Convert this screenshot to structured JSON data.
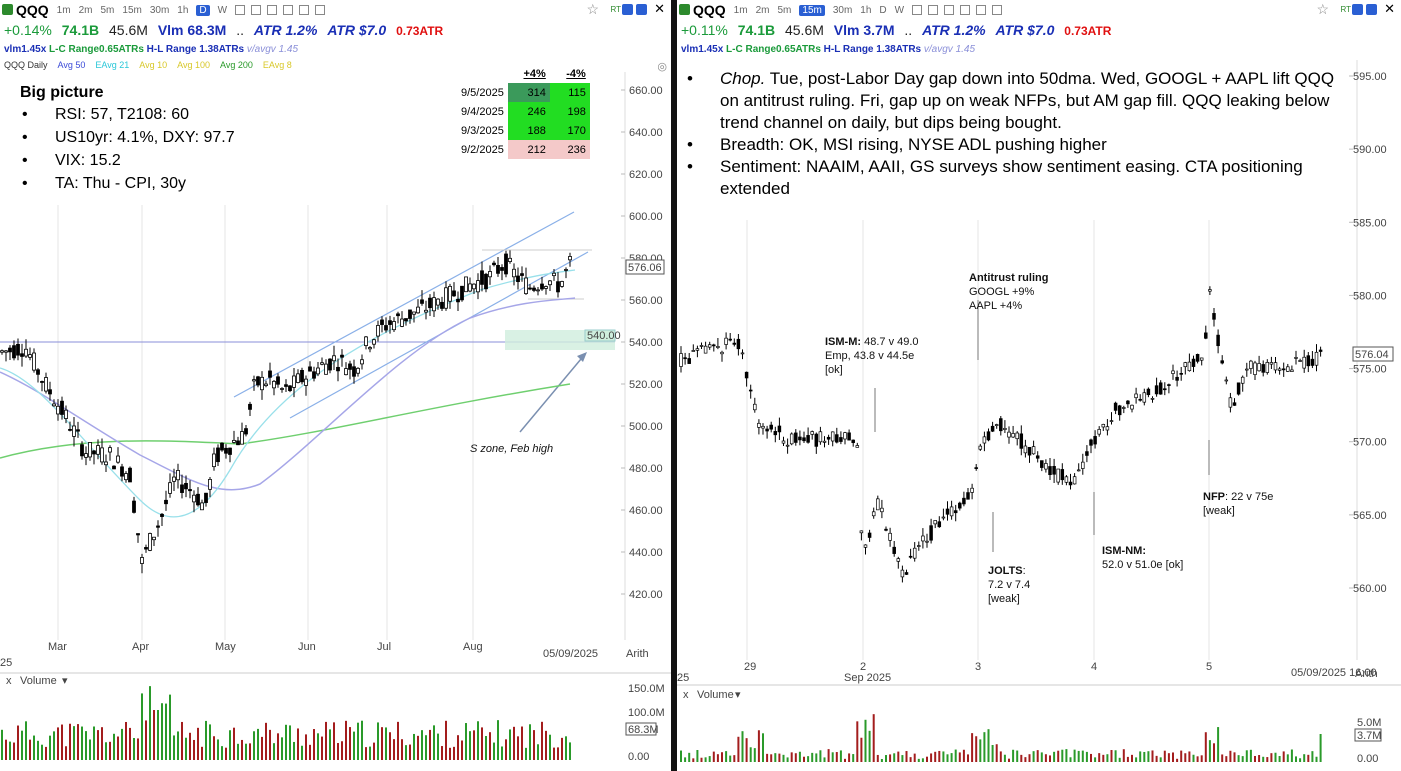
{
  "left": {
    "symbol": "QQQ",
    "timeframes": [
      "1m",
      "2m",
      "5m",
      "15m",
      "30m",
      "1h",
      "D",
      "W"
    ],
    "active_tf": "D",
    "stats": {
      "change": "+0.14%",
      "dollar_vol": "74.1B",
      "vol": "45.6M",
      "vlm": "Vlm 68.3M",
      "dots": "..",
      "atr_pct": "ATR 1.2%",
      "atr_abs": "ATR $7.0",
      "atr_x": "0.73ATR"
    },
    "sub": {
      "vlm": "vlm1.45x",
      "lc": "L-C Range0.65ATRs",
      "hl": "H-L Range 1.38ATRs",
      "avgv": "v/avgv 1.45"
    },
    "legend": [
      {
        "text": "QQQ Daily",
        "color": "#333"
      },
      {
        "text": "Avg 50",
        "color": "#3b4bd8"
      },
      {
        "text": "EAvg 21",
        "color": "#2ac7d8"
      },
      {
        "text": "Avg 10",
        "color": "#d8c82a"
      },
      {
        "text": "Avg 100",
        "color": "#d8c82a"
      },
      {
        "text": "Avg 200",
        "color": "#2a9a2a"
      },
      {
        "text": "EAvg 8",
        "color": "#d8c82a"
      }
    ],
    "note_title": "Big picture",
    "bullets": [
      "RSI: 57, T2108: 60",
      "US10yr: 4.1%, DXY: 97.7",
      "VIX: 15.2",
      "TA: Thu - CPI, 30y"
    ],
    "table": {
      "headers": [
        "+4%",
        "-4%"
      ],
      "rows": [
        {
          "date": "9/5/2025",
          "up": "314",
          "down": "115",
          "up_bg": "#3b9a5b",
          "down_bg": "#22dd22"
        },
        {
          "date": "9/4/2025",
          "up": "246",
          "down": "198",
          "up_bg": "#22dd22",
          "down_bg": "#22dd22"
        },
        {
          "date": "9/3/2025",
          "up": "188",
          "down": "170",
          "up_bg": "#22dd22",
          "down_bg": "#22dd22"
        },
        {
          "date": "9/2/2025",
          "up": "212",
          "down": "236",
          "up_bg": "#f4c9c9",
          "down_bg": "#f4c9c9"
        }
      ]
    },
    "y_ticks": [
      "660.00",
      "640.00",
      "620.00",
      "600.00",
      "580.00",
      "560.00",
      "540.00",
      "520.00",
      "500.00",
      "480.00",
      "460.00",
      "440.00",
      "420.00"
    ],
    "price_label": "576.06",
    "level_label": "540.00",
    "x_ticks": [
      "Mar",
      "Apr",
      "May",
      "Jun",
      "Jul",
      "Aug"
    ],
    "x_start": "25",
    "date_label": "05/09/2025",
    "scale": "Arith",
    "annotation": "S zone, Feb high",
    "volume": {
      "label": "Volume",
      "ticks": [
        "150.0M",
        "100.0M",
        "0.00"
      ],
      "current": "68.3M"
    }
  },
  "right": {
    "symbol": "QQQ",
    "timeframes": [
      "1m",
      "2m",
      "5m",
      "15m",
      "30m",
      "1h",
      "D",
      "W"
    ],
    "active_tf": "15m",
    "stats": {
      "change": "+0.11%",
      "dollar_vol": "74.1B",
      "vol": "45.6M",
      "vlm": "Vlm 3.7M",
      "dots": "..",
      "atr_pct": "ATR 1.2%",
      "atr_abs": "ATR $7.0",
      "atr_x": "0.73ATR"
    },
    "sub": {
      "vlm": "vlm1.45x",
      "lc": "L-C Range0.65ATRs",
      "hl": "H-L Range 1.38ATRs",
      "avgv": "v/avgv 1.45"
    },
    "bullets": [
      {
        "em": "Chop.",
        "text": "  Tue, post-Labor Day gap down into 50dma.  Wed, GOOGL + AAPL lift QQQ on antitrust ruling.  Fri, gap up on weak NFPs, but AM gap fill.  QQQ leaking below trend channel on daily, but dips being bought."
      },
      {
        "em": "",
        "text": "Breadth: OK, MSI rising, NYSE ADL pushing higher"
      },
      {
        "em": "",
        "text": "Sentiment: NAAIM, AAII, GS surveys show sentiment easing. CTA positioning extended"
      }
    ],
    "y_ticks": [
      "595.00",
      "590.00",
      "585.00",
      "580.00",
      "575.00",
      "570.00",
      "565.00",
      "560.00"
    ],
    "price_label": "576.04",
    "x_ticks": [
      "29",
      "2",
      "3",
      "4",
      "5"
    ],
    "x_start": "25",
    "x_sub": "Sep 2025",
    "date_label": "05/09/2025 16:00",
    "scale": "Arith",
    "annotations": {
      "ism_m": {
        "title": "ISM-M:",
        "line1": " 48.7 v 49.0",
        "line2": "Emp, 43.8 v 44.5e",
        "line3": "[ok]"
      },
      "antitrust": {
        "title": "Antitrust ruling",
        "line1": "GOOGL +9%",
        "line2": "AAPL +4%"
      },
      "jolts": {
        "title": "JOLTS",
        "line1": ":",
        "line2": "7.2 v 7.4",
        "line3": "[weak]"
      },
      "ism_nm": {
        "title": "ISM-NM:",
        "line1": "52.0 v 51.0e [ok]"
      },
      "nfp": {
        "title": "NFP",
        "line1": ": 22 v 75e",
        "line2": "[weak]"
      }
    },
    "volume": {
      "label": "Volume",
      "ticks": [
        "5.0M",
        "0.00"
      ],
      "current": "3.7M"
    }
  }
}
